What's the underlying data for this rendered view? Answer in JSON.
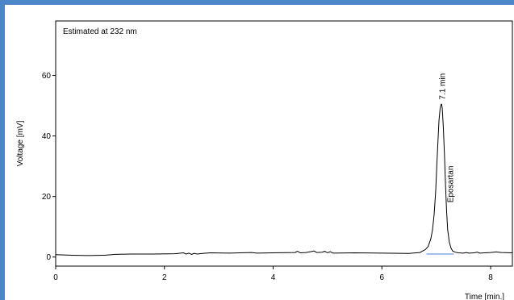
{
  "chart_data": {
    "type": "line",
    "title": "Estimated at 232 nm",
    "xlabel": "Time [min.]",
    "ylabel": "Voltage [mV]",
    "xlim": [
      0,
      8.4
    ],
    "ylim": [
      -3,
      78
    ],
    "xticks": [
      0,
      2,
      4,
      6,
      8
    ],
    "yticks": [
      0,
      20,
      40,
      60
    ],
    "grid": false,
    "series": [
      {
        "line_color": "#000000",
        "x": [
          0,
          0.3,
          0.6,
          0.9,
          1.1,
          1.4,
          1.8,
          2.2,
          2.35,
          2.4,
          2.45,
          2.5,
          2.55,
          2.6,
          2.7,
          2.85,
          3.2,
          3.6,
          3.7,
          4.0,
          4.4,
          4.45,
          4.5,
          4.6,
          4.7,
          4.75,
          4.8,
          4.9,
          4.95,
          5.0,
          5.05,
          5.1,
          5.5,
          6.0,
          6.5,
          6.7,
          6.8,
          6.85,
          6.9,
          6.93,
          6.96,
          6.99,
          7.01,
          7.03,
          7.05,
          7.07,
          7.09,
          7.1,
          7.11,
          7.13,
          7.15,
          7.17,
          7.19,
          7.21,
          7.24,
          7.27,
          7.3,
          7.35,
          7.4,
          7.5,
          7.55,
          7.6,
          7.7,
          7.75,
          7.8,
          7.9,
          8.0,
          8.1,
          8.2,
          8.4
        ],
        "y": [
          0.8,
          0.6,
          0.5,
          0.6,
          0.9,
          1.0,
          1.0,
          1.1,
          1.4,
          1.0,
          1.3,
          0.9,
          1.2,
          1.0,
          1.2,
          1.4,
          1.3,
          1.5,
          1.3,
          1.4,
          1.5,
          1.9,
          1.4,
          1.5,
          1.8,
          2.0,
          1.5,
          1.6,
          1.9,
          1.4,
          1.8,
          1.3,
          1.4,
          1.3,
          1.2,
          1.5,
          2.5,
          3.5,
          6.0,
          9.0,
          14.0,
          22.0,
          30.0,
          38.0,
          45.0,
          49.0,
          50.5,
          50.5,
          49.0,
          43.0,
          34.0,
          24.0,
          15.0,
          9.0,
          5.0,
          3.0,
          2.0,
          1.6,
          1.4,
          1.3,
          1.5,
          1.3,
          1.4,
          1.6,
          1.3,
          1.4,
          1.5,
          1.7,
          1.5,
          1.4
        ]
      },
      {
        "line_color": "#4a7fd4",
        "x": [
          6.82,
          7.32
        ],
        "y": [
          1.0,
          1.0
        ]
      }
    ],
    "annotations": [
      {
        "text": "7.1 min",
        "x": 7.1,
        "y": 52,
        "rotation": -90
      },
      {
        "text": "Eposartan",
        "x": 7.25,
        "y": 18,
        "rotation": -90
      }
    ]
  }
}
